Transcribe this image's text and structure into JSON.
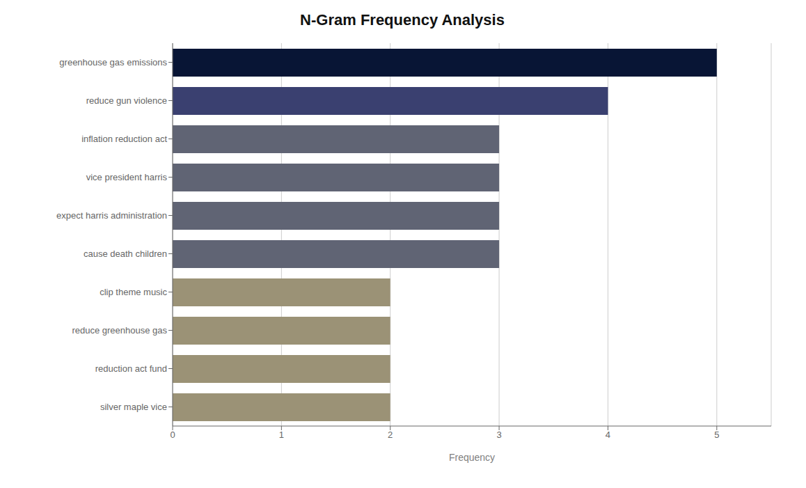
{
  "chart_data": {
    "type": "bar",
    "orientation": "horizontal",
    "title": "N-Gram Frequency Analysis",
    "xlabel": "Frequency",
    "categories": [
      "silver maple vice",
      "reduction act fund",
      "reduce greenhouse gas",
      "clip theme music",
      "cause death children",
      "expect harris administration",
      "vice president harris",
      "inflation reduction act",
      "reduce gun violence",
      "greenhouse gas emissions"
    ],
    "values": [
      2,
      2,
      2,
      2,
      3,
      3,
      3,
      3,
      4,
      5
    ],
    "colors": [
      "#9b9276",
      "#9b9276",
      "#9b9276",
      "#9b9276",
      "#606474",
      "#606474",
      "#606474",
      "#606474",
      "#3a4070",
      "#081535"
    ],
    "xlim": [
      0,
      5.5
    ],
    "xticks": [
      0,
      1,
      2,
      3,
      4,
      5
    ],
    "grid": true
  }
}
